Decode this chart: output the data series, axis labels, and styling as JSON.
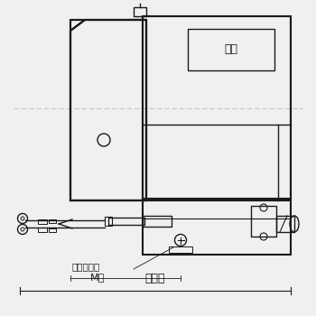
{
  "bg_color": "#f0f0f0",
  "line_color": "#1a1a1a",
  "light_line_color": "#aaaaaa",
  "text_color": "#1a1a1a",
  "label_meiban": "銘板",
  "label_earth": "アースネジ",
  "label_M5": "M５",
  "label_130": "１３０"
}
